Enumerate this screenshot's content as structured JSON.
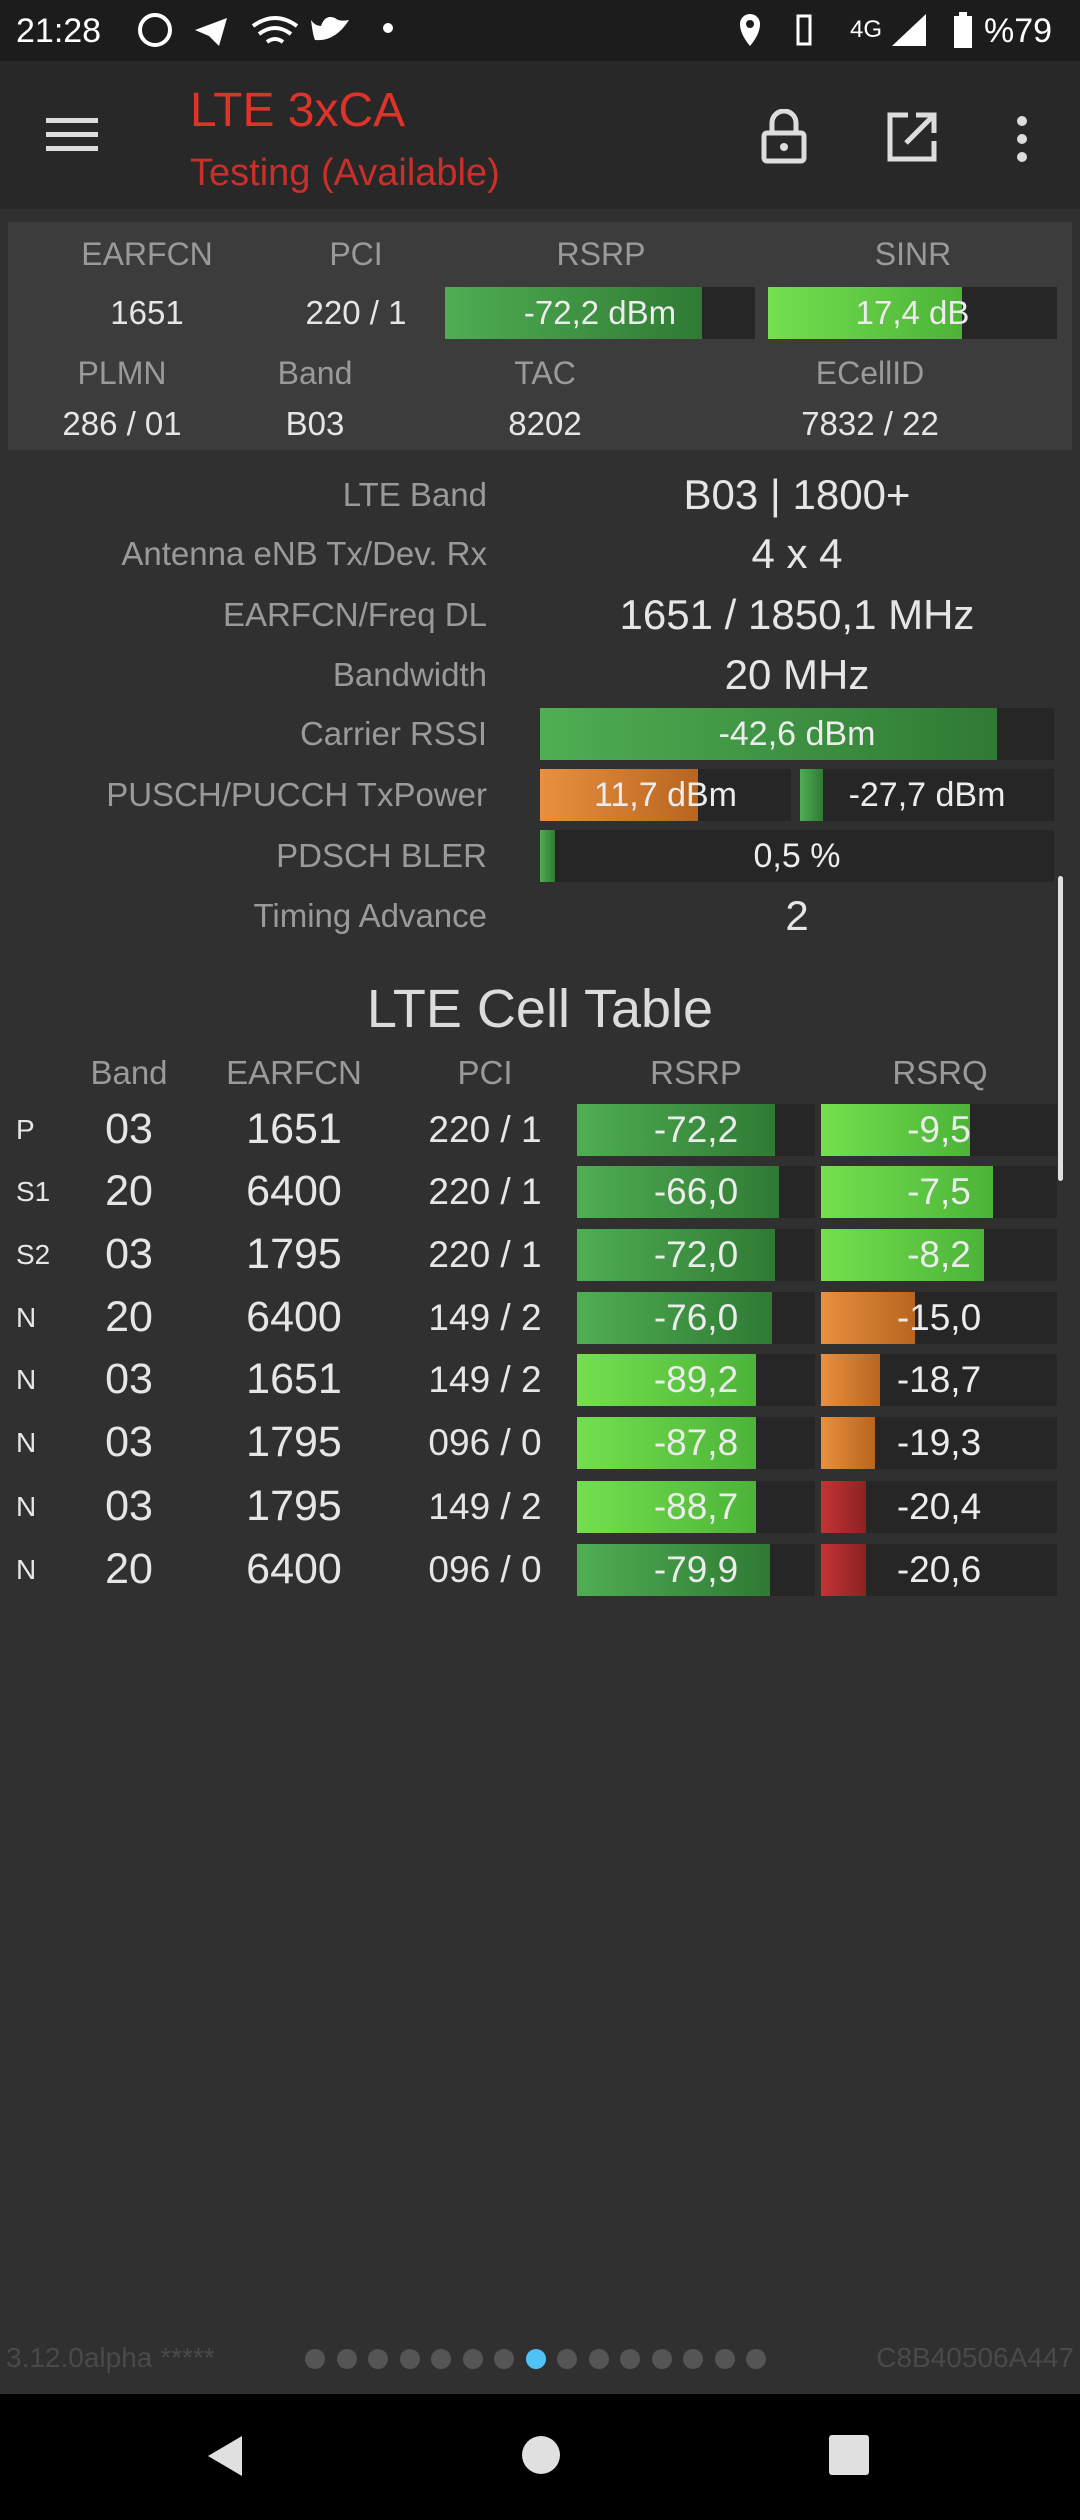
{
  "status_bar": {
    "time": "21:28",
    "network": "4G",
    "battery": "%79"
  },
  "toolbar": {
    "title": "LTE 3xCA",
    "subtitle": "Testing (Available)"
  },
  "summary": {
    "headers": [
      "EARFCN",
      "PCI",
      "RSRP",
      "SINR"
    ],
    "values": [
      "1651",
      "220 / 1",
      "-72,2 dBm",
      "17,4 dB"
    ],
    "headers2": [
      "PLMN",
      "Band",
      "TAC",
      "ECellID"
    ],
    "values2": [
      "286 / 01",
      "B03",
      "8202",
      "7832 / 22"
    ]
  },
  "details": [
    {
      "label": "LTE Band",
      "value": "B03 | 1800+"
    },
    {
      "label": "Antenna eNB Tx/Dev. Rx",
      "value": "4 x 4"
    },
    {
      "label": "EARFCN/Freq DL",
      "value": "1651 / 1850,1 MHz"
    },
    {
      "label": "Bandwidth",
      "value": "20 MHz"
    },
    {
      "label": "Carrier RSSI",
      "value": "-42,6 dBm"
    },
    {
      "label": "PUSCH/PUCCH TxPower",
      "values": [
        "11,7 dBm",
        "-27,7 dBm"
      ]
    },
    {
      "label": "PDSCH BLER",
      "value": "0,5 %"
    },
    {
      "label": "Timing Advance",
      "value": "2"
    }
  ],
  "cell_table": {
    "title": "LTE Cell Table",
    "columns": [
      "Band",
      "EARFCN",
      "PCI",
      "RSRP",
      "RSRQ"
    ],
    "rows": [
      [
        "P",
        "03",
        "1651",
        "220 / 1",
        "-72,2",
        "-9,5"
      ],
      [
        "S1",
        "20",
        "6400",
        "220 / 1",
        "-66,0",
        "-7,5"
      ],
      [
        "S2",
        "03",
        "1795",
        "220 / 1",
        "-72,0",
        "-8,2"
      ],
      [
        "N",
        "20",
        "6400",
        "149 / 2",
        "-76,0",
        "-15,0"
      ],
      [
        "N",
        "03",
        "1651",
        "149 / 2",
        "-89,2",
        "-18,7"
      ],
      [
        "N",
        "03",
        "1795",
        "096 / 0",
        "-87,8",
        "-19,3"
      ],
      [
        "N",
        "03",
        "1795",
        "149 / 2",
        "-88,7",
        "-20,4"
      ],
      [
        "N",
        "20",
        "6400",
        "096 / 0",
        "-79,9",
        "-20,6"
      ]
    ]
  },
  "footer": {
    "version": "3.12.0alpha *****",
    "device_id": "C8B40506A447"
  }
}
